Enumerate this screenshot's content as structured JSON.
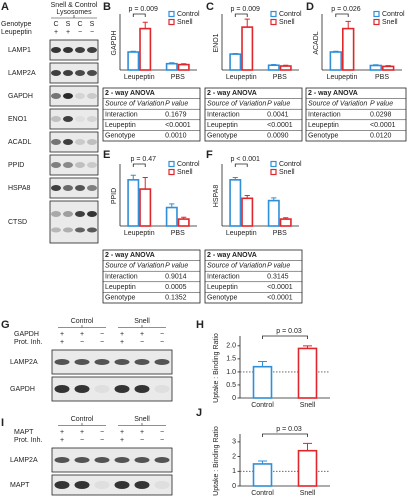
{
  "chart_data": [
    {
      "type": "bar",
      "label": "B",
      "ylabel": "GAPDH",
      "categories": [
        "Leupeptin",
        "PBS"
      ],
      "annotation": "p = 0.009",
      "ylim": [
        0,
        3
      ],
      "series": [
        {
          "name": "Control",
          "color": "#2f8fd8",
          "values": [
            1.0,
            0.35
          ],
          "errors": [
            0.04,
            0.05
          ]
        },
        {
          "name": "Snell",
          "color": "#e0262b",
          "values": [
            2.3,
            0.3
          ],
          "errors": [
            0.35,
            0.05
          ]
        }
      ],
      "anova": {
        "title": "2 - way ANOVA",
        "columns": [
          "Source of Variation",
          "P value"
        ],
        "rows": [
          [
            "Interaction",
            "0.1679"
          ],
          [
            "Leupeptin",
            "<0.0001"
          ],
          [
            "Genotype",
            "0.0010"
          ]
        ]
      }
    },
    {
      "type": "bar",
      "label": "C",
      "ylabel": "ENO1",
      "categories": [
        "Leupeptin",
        "PBS"
      ],
      "annotation": "p = 0.009",
      "ylim": [
        0,
        3.4
      ],
      "series": [
        {
          "name": "Control",
          "color": "#2f8fd8",
          "values": [
            1.0,
            0.3
          ],
          "errors": [
            0.04,
            0.05
          ]
        },
        {
          "name": "Snell",
          "color": "#e0262b",
          "values": [
            2.7,
            0.25
          ],
          "errors": [
            0.5,
            0.05
          ]
        }
      ],
      "anova": {
        "title": "2 - way ANOVA",
        "columns": [
          "Source of Variation",
          "P value"
        ],
        "rows": [
          [
            "Interaction",
            "0.0041"
          ],
          [
            "Leupeptin",
            "<0.0001"
          ],
          [
            "Genotype",
            "0.0090"
          ]
        ]
      }
    },
    {
      "type": "bar",
      "label": "D",
      "ylabel": "ACADL",
      "categories": [
        "Leupeptin",
        "PBS"
      ],
      "annotation": "p = 0.026",
      "ylim": [
        0,
        3
      ],
      "series": [
        {
          "name": "Control",
          "color": "#2f8fd8",
          "values": [
            1.0,
            0.25
          ],
          "errors": [
            0.04,
            0.04
          ]
        },
        {
          "name": "Snell",
          "color": "#e0262b",
          "values": [
            2.3,
            0.2
          ],
          "errors": [
            0.4,
            0.04
          ]
        }
      ],
      "anova": {
        "title": "2 - way ANOVA",
        "columns": [
          "Source of Variation",
          "P value"
        ],
        "rows": [
          [
            "Interaction",
            "0.0298"
          ],
          [
            "Leupeptin",
            "<0.0001"
          ],
          [
            "Genotype",
            "0.0120"
          ]
        ]
      }
    },
    {
      "type": "bar",
      "label": "E",
      "ylabel": "PPID",
      "categories": [
        "Leupeptin",
        "PBS"
      ],
      "annotation": "p = 0.47",
      "ylim": [
        0,
        1.3
      ],
      "series": [
        {
          "name": "Control",
          "color": "#2f8fd8",
          "values": [
            1.0,
            0.4
          ],
          "errors": [
            0.1,
            0.08
          ]
        },
        {
          "name": "Snell",
          "color": "#e0262b",
          "values": [
            0.8,
            0.15
          ],
          "errors": [
            0.25,
            0.04
          ]
        }
      ],
      "anova": {
        "title": "2 - way ANOVA",
        "columns": [
          "Source of Variation",
          "P value"
        ],
        "rows": [
          [
            "Interaction",
            "0.9014"
          ],
          [
            "Leupeptin",
            "0.0005"
          ],
          [
            "Genotype",
            "0.1352"
          ]
        ]
      }
    },
    {
      "type": "bar",
      "label": "F",
      "ylabel": "HSPA8",
      "categories": [
        "Leupeptin",
        "PBS"
      ],
      "annotation": "p < 0.001",
      "ylim": [
        0,
        1.3
      ],
      "series": [
        {
          "name": "Control",
          "color": "#2f8fd8",
          "values": [
            1.0,
            0.55
          ],
          "errors": [
            0.05,
            0.06
          ]
        },
        {
          "name": "Snell",
          "color": "#e0262b",
          "values": [
            0.6,
            0.15
          ],
          "errors": [
            0.06,
            0.03
          ]
        }
      ],
      "anova": {
        "title": "2 - way ANOVA",
        "columns": [
          "Source of Variation",
          "P value"
        ],
        "rows": [
          [
            "Interaction",
            "0.3145"
          ],
          [
            "Leupeptin",
            "<0.0001"
          ],
          [
            "Genotype",
            "<0.0001"
          ]
        ]
      }
    },
    {
      "type": "bar",
      "label": "H",
      "ylabel": "Uptake : Binding Ratio",
      "categories": [
        "Control",
        "Snell"
      ],
      "annotation": "p = 0.03",
      "ylim": [
        0,
        2.3
      ],
      "yticks": [
        0,
        0.5,
        {
          "value": 1,
          "label": "1.0"
        },
        1.5,
        {
          "value": 2,
          "label": "2.0"
        }
      ],
      "reference_line": 1,
      "colors": [
        "#2f8fd8",
        "#e0262b"
      ],
      "values": [
        1.2,
        1.9
      ],
      "errors": [
        0.2,
        0.1
      ]
    },
    {
      "type": "bar",
      "label": "J",
      "ylabel": "Uptake : Binding Ratio",
      "categories": [
        "Control",
        "Snell"
      ],
      "annotation": "p = 0.03",
      "ylim": [
        0,
        3.4
      ],
      "yticks": [
        0,
        1,
        2,
        3
      ],
      "reference_line": 1,
      "colors": [
        "#2f8fd8",
        "#e0262b"
      ],
      "values": [
        1.5,
        2.4
      ],
      "errors": [
        0.2,
        0.5
      ]
    }
  ],
  "blot_a": {
    "label": "A",
    "header": [
      "Snell & Control",
      "Lysosomes"
    ],
    "genotype_label": "Genotype",
    "genotype": [
      "C",
      "S",
      "C",
      "S"
    ],
    "leupeptin_label": "Leupeptin",
    "leupeptin": [
      "+",
      "+",
      "−",
      "−"
    ],
    "rows": [
      "LAMP1",
      "LAMP2A",
      "GAPDH",
      "ENO1",
      "ACADL",
      "PPID",
      "HSPA8",
      "CTSD"
    ]
  },
  "blots": [
    {
      "label": "G",
      "groups": [
        "Control",
        "Snell"
      ],
      "condition_rows": [
        {
          "name": "GAPDH",
          "signs": [
            "+",
            "+",
            "−",
            "+",
            "+",
            "−"
          ]
        },
        {
          "name": "Prot. Inh.",
          "signs": [
            "+",
            "−",
            "−",
            "+",
            "−",
            "−"
          ]
        }
      ],
      "rows": [
        "LAMP2A",
        "GAPDH"
      ]
    },
    {
      "label": "I",
      "groups": [
        "Control",
        "Snell"
      ],
      "condition_rows": [
        {
          "name": "MAPT",
          "signs": [
            "+",
            "+",
            "−",
            "+",
            "+",
            "−"
          ]
        },
        {
          "name": "Prot. Inh.",
          "signs": [
            "+",
            "−",
            "−",
            "+",
            "−",
            "−"
          ]
        }
      ],
      "rows": [
        "LAMP2A",
        "MAPT"
      ]
    }
  ]
}
